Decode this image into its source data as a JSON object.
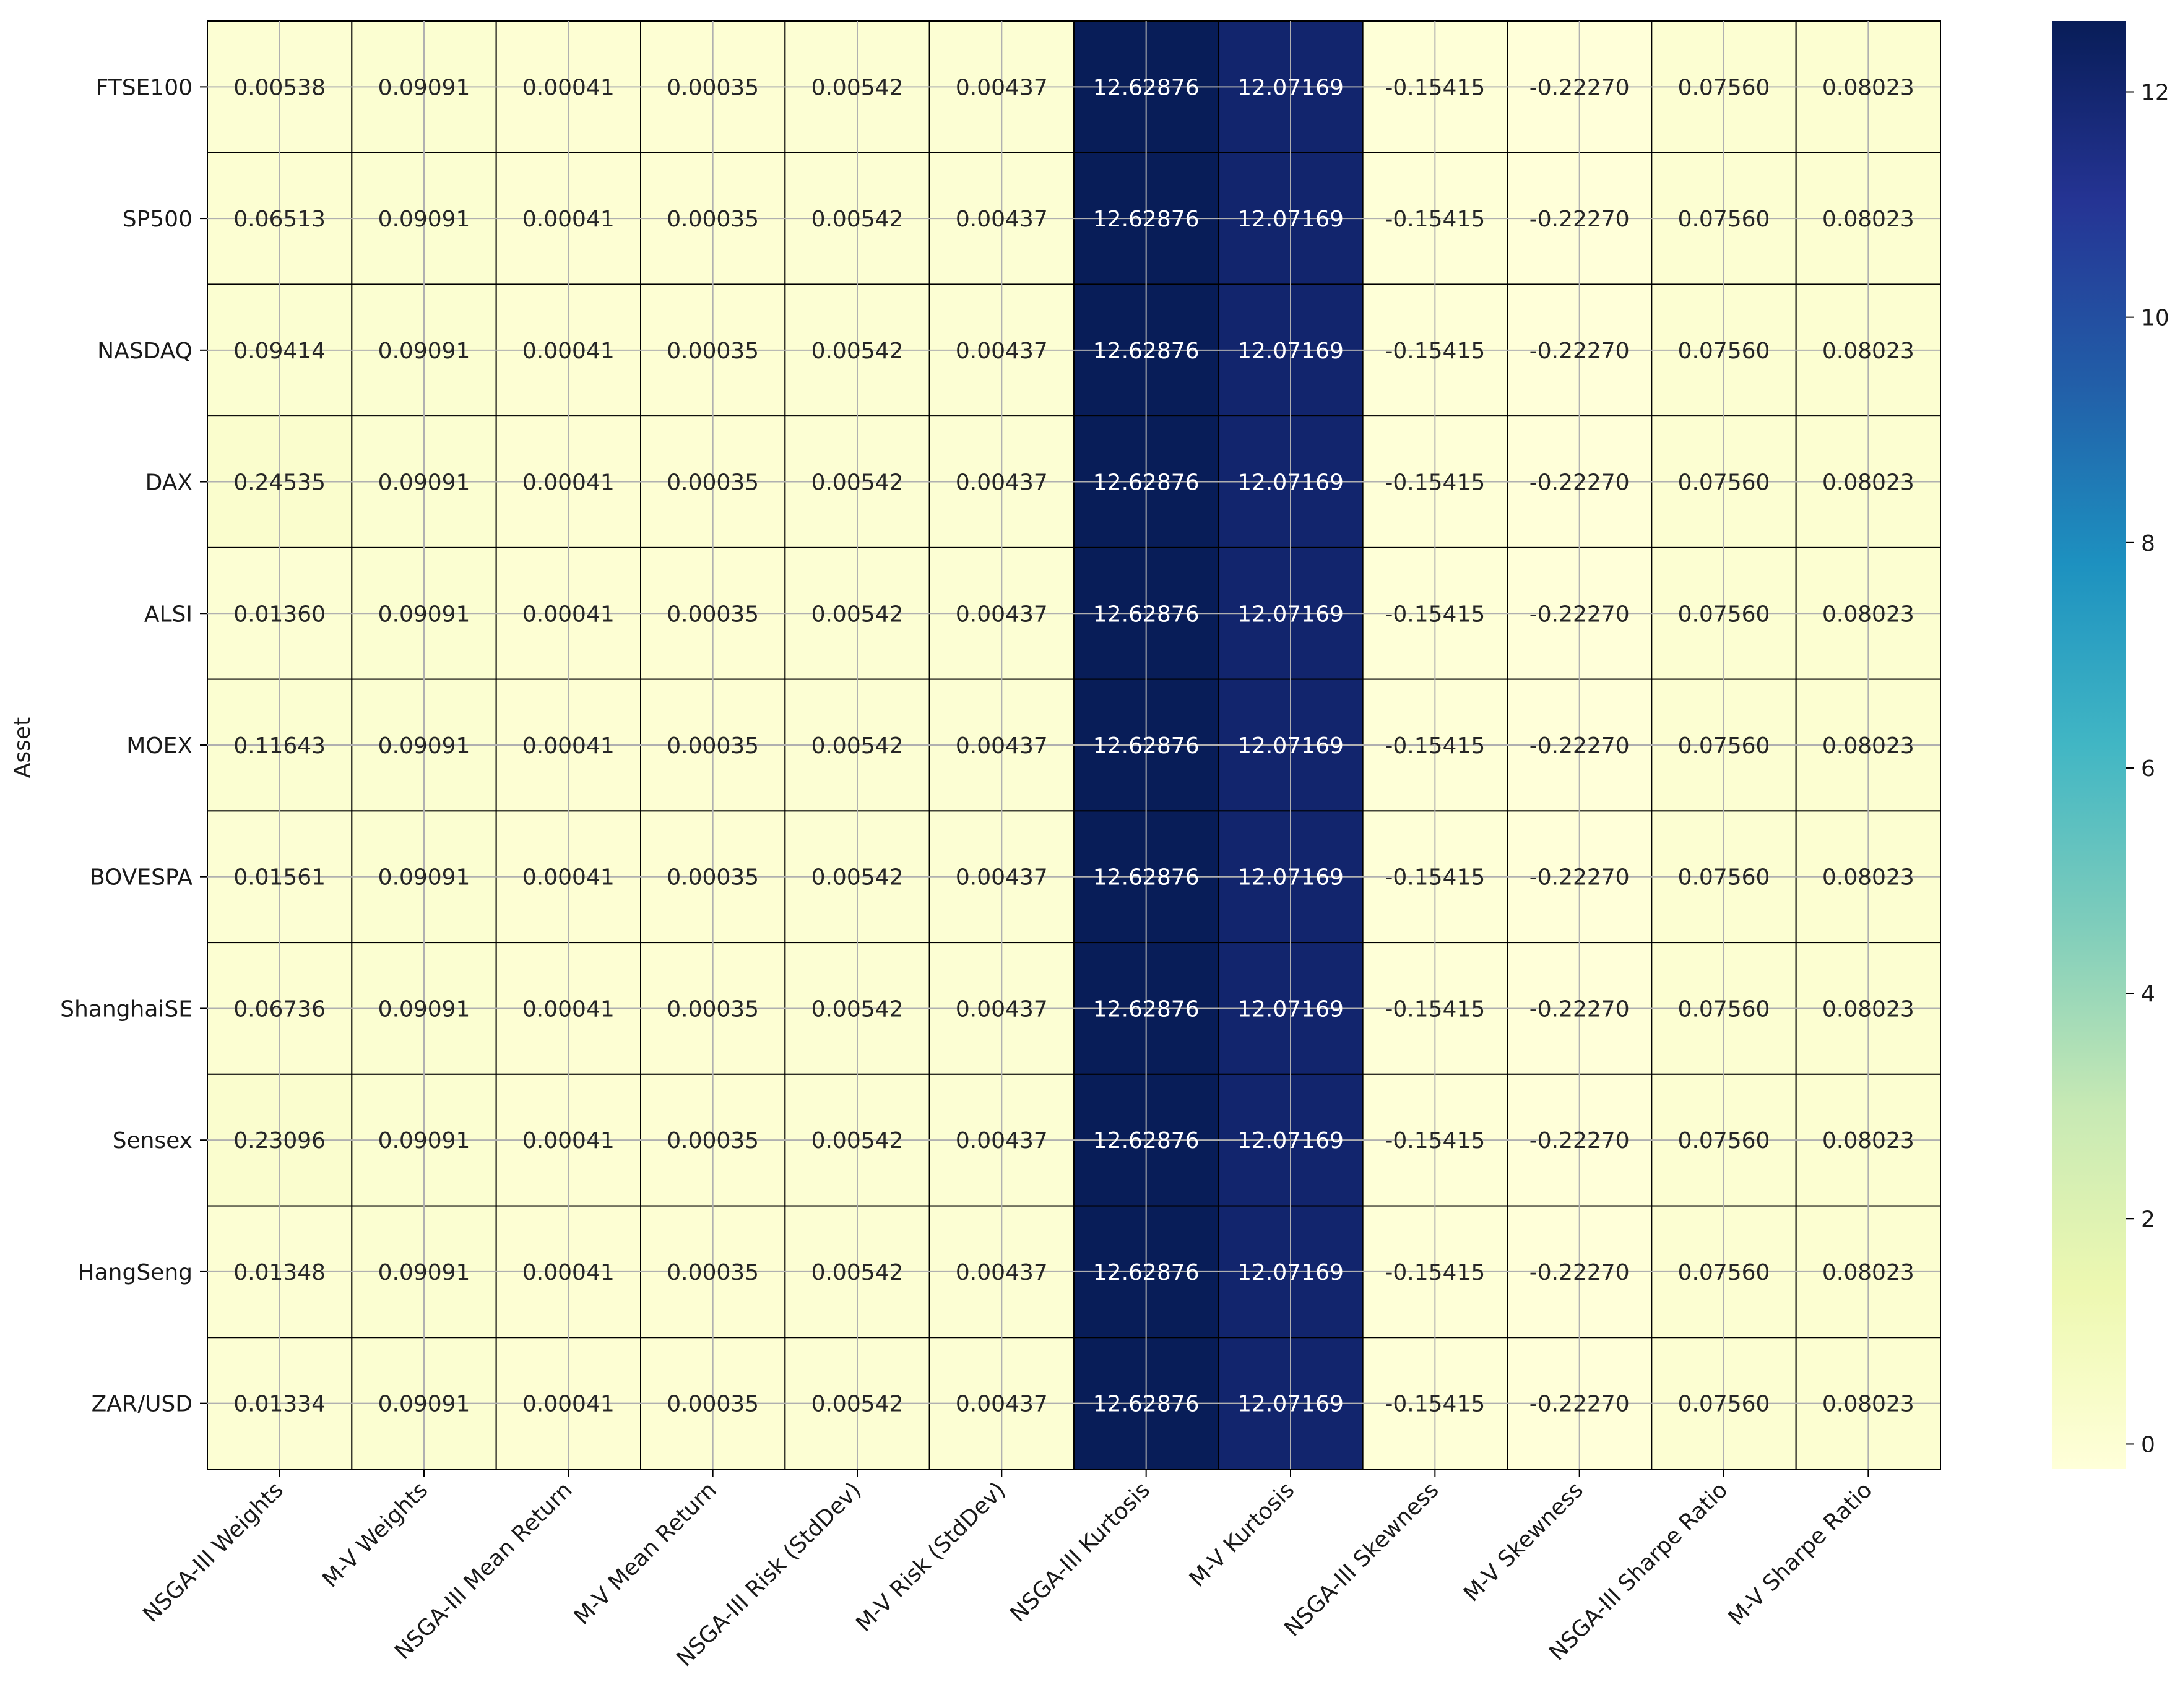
{
  "colors": {
    "colormap": "YlGnBu",
    "stops": [
      [
        0.0,
        "#ffffd9"
      ],
      [
        0.125,
        "#edf8b1"
      ],
      [
        0.25,
        "#c7e9b4"
      ],
      [
        0.375,
        "#7fcdbb"
      ],
      [
        0.5,
        "#41b6c4"
      ],
      [
        0.625,
        "#1d91c0"
      ],
      [
        0.75,
        "#225ea8"
      ],
      [
        0.875,
        "#253494"
      ],
      [
        1.0,
        "#081d58"
      ]
    ],
    "cell_border": "#000000",
    "grid": "#b0b0b0",
    "axis_text": "#1a1a1a"
  },
  "chart_data": {
    "type": "heatmap",
    "title": "",
    "xlabel": "",
    "ylabel": "Asset",
    "rows": [
      "FTSE100",
      "SP500",
      "NASDAQ",
      "DAX",
      "ALSI",
      "MOEX",
      "BOVESPA",
      "ShanghaiSE",
      "Sensex",
      "HangSeng",
      "ZAR/USD"
    ],
    "columns": [
      "NSGA-III Weights",
      "M-V Weights",
      "NSGA-III Mean Return",
      "M-V Mean Return",
      "NSGA-III Risk (StdDev)",
      "M-V Risk (StdDev)",
      "NSGA-III Kurtosis",
      "M-V Kurtosis",
      "NSGA-III Skewness",
      "M-V Skewness",
      "NSGA-III Sharpe Ratio",
      "M-V Sharpe Ratio"
    ],
    "values": [
      [
        "0.00538",
        "0.09091",
        "0.00041",
        "0.00035",
        "0.00542",
        "0.00437",
        "12.62876",
        "12.07169",
        "-0.15415",
        "-0.22270",
        "0.07560",
        "0.08023"
      ],
      [
        "0.06513",
        "0.09091",
        "0.00041",
        "0.00035",
        "0.00542",
        "0.00437",
        "12.62876",
        "12.07169",
        "-0.15415",
        "-0.22270",
        "0.07560",
        "0.08023"
      ],
      [
        "0.09414",
        "0.09091",
        "0.00041",
        "0.00035",
        "0.00542",
        "0.00437",
        "12.62876",
        "12.07169",
        "-0.15415",
        "-0.22270",
        "0.07560",
        "0.08023"
      ],
      [
        "0.24535",
        "0.09091",
        "0.00041",
        "0.00035",
        "0.00542",
        "0.00437",
        "12.62876",
        "12.07169",
        "-0.15415",
        "-0.22270",
        "0.07560",
        "0.08023"
      ],
      [
        "0.01360",
        "0.09091",
        "0.00041",
        "0.00035",
        "0.00542",
        "0.00437",
        "12.62876",
        "12.07169",
        "-0.15415",
        "-0.22270",
        "0.07560",
        "0.08023"
      ],
      [
        "0.11643",
        "0.09091",
        "0.00041",
        "0.00035",
        "0.00542",
        "0.00437",
        "12.62876",
        "12.07169",
        "-0.15415",
        "-0.22270",
        "0.07560",
        "0.08023"
      ],
      [
        "0.01561",
        "0.09091",
        "0.00041",
        "0.00035",
        "0.00542",
        "0.00437",
        "12.62876",
        "12.07169",
        "-0.15415",
        "-0.22270",
        "0.07560",
        "0.08023"
      ],
      [
        "0.06736",
        "0.09091",
        "0.00041",
        "0.00035",
        "0.00542",
        "0.00437",
        "12.62876",
        "12.07169",
        "-0.15415",
        "-0.22270",
        "0.07560",
        "0.08023"
      ],
      [
        "0.23096",
        "0.09091",
        "0.00041",
        "0.00035",
        "0.00542",
        "0.00437",
        "12.62876",
        "12.07169",
        "-0.15415",
        "-0.22270",
        "0.07560",
        "0.08023"
      ],
      [
        "0.01348",
        "0.09091",
        "0.00041",
        "0.00035",
        "0.00542",
        "0.00437",
        "12.62876",
        "12.07169",
        "-0.15415",
        "-0.22270",
        "0.07560",
        "0.08023"
      ],
      [
        "0.01334",
        "0.09091",
        "0.00041",
        "0.00035",
        "0.00542",
        "0.00437",
        "12.62876",
        "12.07169",
        "-0.15415",
        "-0.22270",
        "0.07560",
        "0.08023"
      ]
    ],
    "colorbar": {
      "vmin": -0.2227,
      "vmax": 12.62876,
      "ticks": [
        0,
        2,
        4,
        6,
        8,
        10,
        12
      ],
      "tick_labels": [
        "0",
        "2",
        "4",
        "6",
        "8",
        "10",
        "12"
      ]
    },
    "grid": true,
    "legend": "colorbar-right"
  }
}
